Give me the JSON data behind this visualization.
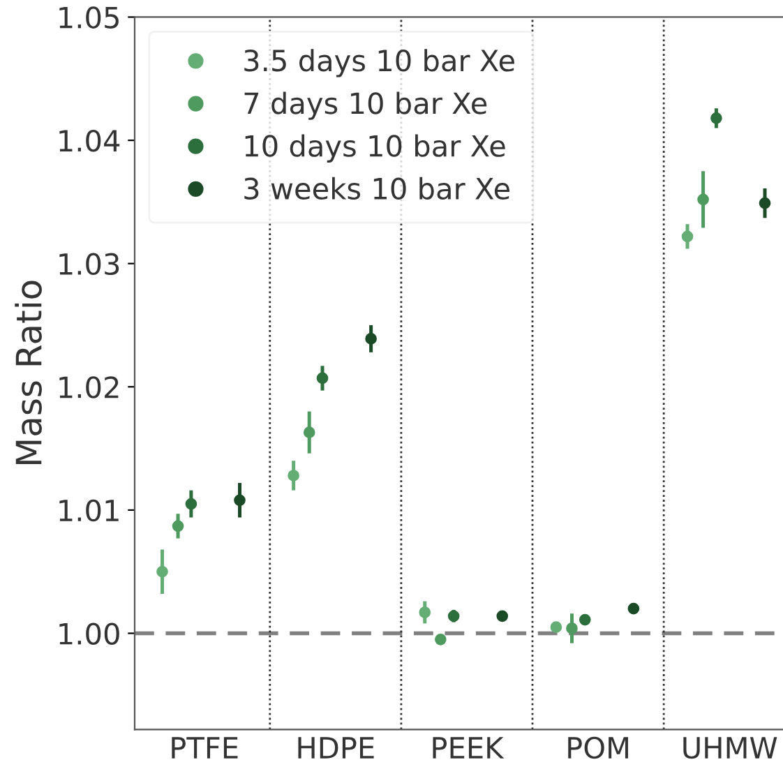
{
  "chart_data": {
    "type": "scatter",
    "ylabel": "Mass Ratio",
    "categories": [
      "PTFE",
      "HDPE",
      "PEEK",
      "POM",
      "UHMW"
    ],
    "series": [
      {
        "name": "3.5 days 10 bar Xe",
        "color": "#64ad74",
        "values": [
          1.005,
          1.0128,
          1.0017,
          1.0005,
          1.0322
        ],
        "errors": [
          0.0018,
          0.0012,
          0.0009,
          0.0001,
          0.001
        ]
      },
      {
        "name": "7 days 10 bar Xe",
        "color": "#4e9a5f",
        "values": [
          1.0087,
          1.0163,
          0.9995,
          1.0004,
          1.0352
        ],
        "errors": [
          0.001,
          0.0017,
          0.0004,
          0.0012,
          0.0023
        ]
      },
      {
        "name": "10 days 10 bar Xe",
        "color": "#2d6e3d",
        "values": [
          1.0105,
          1.0207,
          1.0014,
          1.0011,
          1.0418
        ],
        "errors": [
          0.0011,
          0.001,
          0.0005,
          0.0002,
          0.0008
        ]
      },
      {
        "name": "3 weeks 10 bar Xe",
        "color": "#1b4a27",
        "values": [
          1.0108,
          1.0239,
          1.0014,
          1.002,
          1.0349
        ],
        "errors": [
          0.0014,
          0.0011,
          0.0002,
          0.0002,
          0.0012
        ]
      }
    ],
    "ylim": [
      0.9922,
      1.05
    ],
    "yticks": [
      {
        "value": 1.0,
        "label": "1.00"
      },
      1.01,
      1.02,
      1.03,
      1.04,
      1.05
    ],
    "ref_lines": [
      {
        "axis": "y",
        "value": 1.0,
        "color": "#808080",
        "line_style": "dashed"
      }
    ],
    "legend": "top left",
    "grid": false,
    "marker": "circle"
  }
}
